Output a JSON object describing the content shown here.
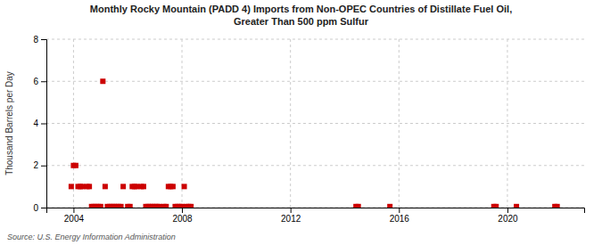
{
  "chart_data": {
    "type": "scatter",
    "title": "Monthly Rocky Mountain (PADD 4) Imports from Non-OPEC Countries of Distillate Fuel Oil,",
    "subtitle": "Greater Than 500 ppm Sulfur",
    "y_label": "Thousand Barrels per Day",
    "annotations": [
      "Source: U.S. Energy Information Administration"
    ],
    "color": "#cc0000",
    "marker": "square",
    "grid": true,
    "xlim": [
      2003.0,
      2022.83
    ],
    "xticks": [
      2004,
      2008,
      2012,
      2016,
      2020
    ],
    "ylim": [
      0,
      8
    ],
    "yticks": [
      0,
      2,
      4,
      6,
      8
    ],
    "x": [
      2003.917,
      2004.0,
      2004.083,
      2004.167,
      2004.25,
      2004.333,
      2004.5,
      2004.583,
      2004.667,
      2004.75,
      2004.833,
      2004.917,
      2005.0,
      2005.083,
      2005.167,
      2005.25,
      2005.333,
      2005.417,
      2005.5,
      2005.583,
      2005.667,
      2005.75,
      2005.833,
      2006.0,
      2006.083,
      2006.167,
      2006.25,
      2006.333,
      2006.5,
      2006.583,
      2006.667,
      2006.75,
      2006.833,
      2006.917,
      2007.0,
      2007.083,
      2007.167,
      2007.333,
      2007.417,
      2007.5,
      2007.583,
      2007.667,
      2007.75,
      2007.833,
      2007.917,
      2008.0,
      2008.083,
      2008.167,
      2008.25,
      2008.333,
      2014.417,
      2014.5,
      2015.667,
      2019.5,
      2019.583,
      2020.333,
      2021.75,
      2021.833
    ],
    "values": [
      1.0,
      2.0,
      2.0,
      1.0,
      1.0,
      1.0,
      1.0,
      1.0,
      0.05,
      0.05,
      0.05,
      0.05,
      0.05,
      6.0,
      1.0,
      0.05,
      0.05,
      0.05,
      0.05,
      0.05,
      0.05,
      0.05,
      1.0,
      0.05,
      0.05,
      1.0,
      1.0,
      1.0,
      1.0,
      1.0,
      0.05,
      0.05,
      0.05,
      0.05,
      0.05,
      0.05,
      0.05,
      0.05,
      0.05,
      1.0,
      1.0,
      1.0,
      0.05,
      0.05,
      0.05,
      0.05,
      1.0,
      0.05,
      0.05,
      0.05,
      0.05,
      0.05,
      0.05,
      0.05,
      0.05,
      0.05,
      0.05,
      0.05
    ]
  }
}
